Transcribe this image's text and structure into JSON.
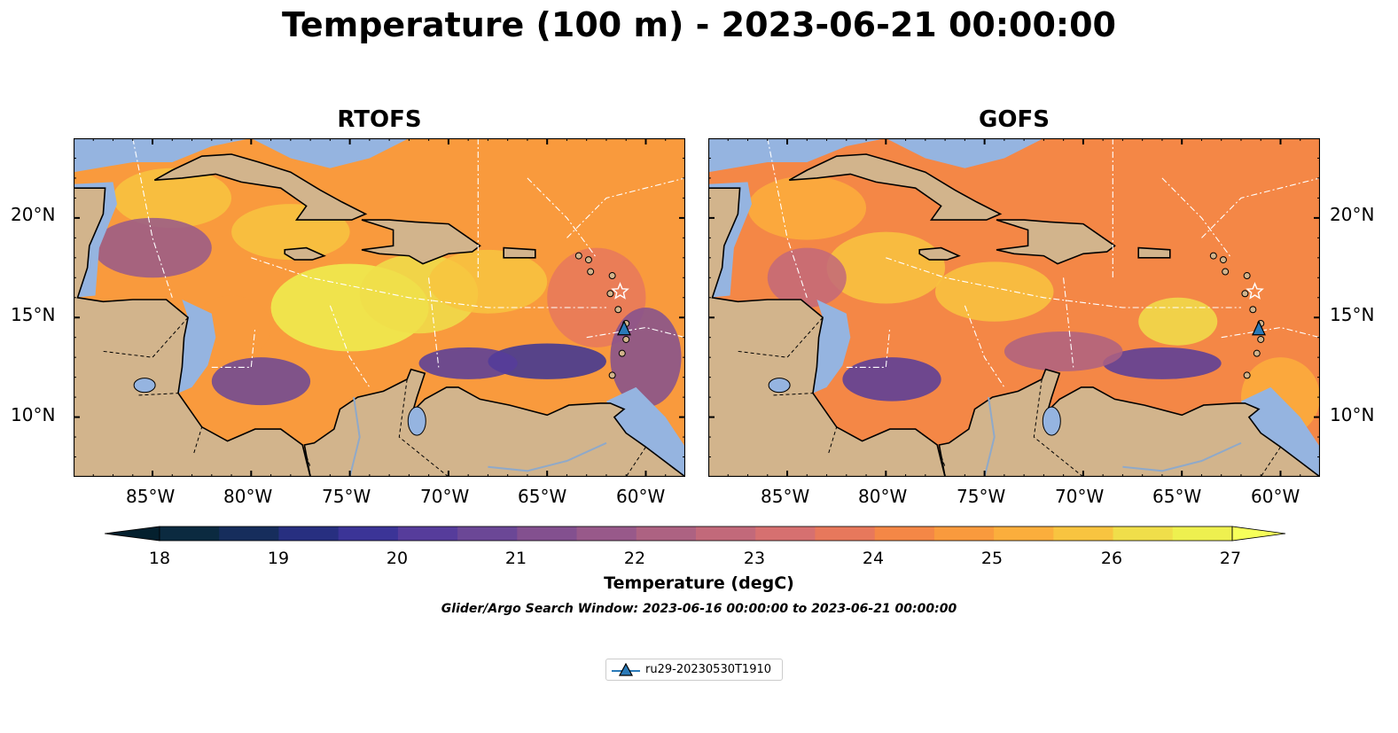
{
  "title": "Temperature (100 m) - 2023-06-21 00:00:00",
  "panels": [
    {
      "title": "RTOFS"
    },
    {
      "title": "GOFS"
    }
  ],
  "axes": {
    "lon_ticks": [
      "85°W",
      "80°W",
      "75°W",
      "70°W",
      "65°W",
      "60°W"
    ],
    "lat_ticks": [
      "20°N",
      "15°N",
      "10°N"
    ],
    "lon_range": [
      -89,
      -58
    ],
    "lat_range": [
      7,
      24
    ]
  },
  "colorbar": {
    "label": "Temperature (degC)",
    "ticks": [
      "18",
      "19",
      "20",
      "21",
      "22",
      "23",
      "24",
      "25",
      "26",
      "27"
    ],
    "range": [
      18,
      27
    ],
    "colors": [
      "#0b2a40",
      "#162d5c",
      "#272f80",
      "#3b3497",
      "#563c9b",
      "#6b4796",
      "#83508f",
      "#98598a",
      "#ad6282",
      "#c2697a",
      "#d67070",
      "#e7785c",
      "#f48746",
      "#f99a3d",
      "#fbae3c",
      "#f8c440",
      "#f0de4a",
      "#eef04f"
    ]
  },
  "search_window": "Glider/Argo Search Window: 2023-06-16 00:00:00 to 2023-06-21 00:00:00",
  "legend": {
    "entries": [
      {
        "label": "ru29-20230530T1910",
        "marker": "triangle",
        "color": "#2a7ab8"
      }
    ]
  },
  "glider": {
    "lon": -61.1,
    "lat": 14.4
  },
  "star": {
    "lon": -61.3,
    "lat": 16.3
  }
}
